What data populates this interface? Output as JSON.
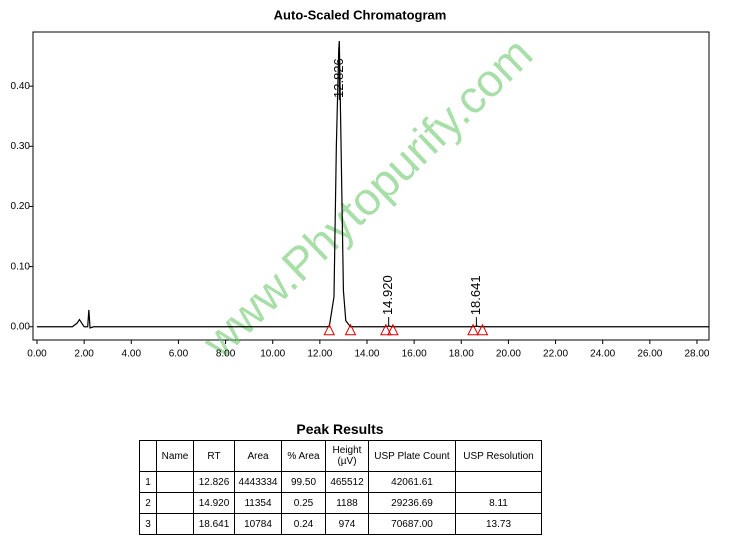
{
  "chart_data": {
    "type": "line",
    "title": "Auto-Scaled Chromatogram",
    "watermark": "www.Phytopurify.com",
    "x": [
      0,
      1.5,
      1.7,
      1.8,
      1.9,
      2.0,
      2.15,
      2.2,
      2.25,
      2.4,
      12.4,
      12.6,
      12.7,
      12.8,
      12.826,
      12.9,
      13.0,
      13.1,
      13.3,
      14.8,
      14.92,
      15.05,
      18.5,
      18.641,
      18.8,
      28.5
    ],
    "series": [
      {
        "color": "#000000",
        "values": [
          0,
          0,
          0.006,
          0.012,
          0.006,
          0,
          0,
          0.028,
          -0.002,
          0,
          0,
          0.05,
          0.3,
          0.46,
          0.475,
          0.3,
          0.06,
          0.01,
          0,
          0,
          0.0012,
          0,
          0,
          0.001,
          0,
          0
        ]
      }
    ],
    "peak_labels": [
      {
        "value": 12.826,
        "label": "12.826"
      },
      {
        "value": 14.92,
        "label": "14.920"
      },
      {
        "value": 18.641,
        "label": "18.641"
      }
    ],
    "baseline_marks": [
      12.4,
      13.3,
      14.8,
      15.1,
      18.5,
      18.9
    ],
    "baseline_mark_color": "#e00000",
    "xlim": [
      -0.17,
      28.51
    ],
    "ylim": [
      -0.022,
      0.49
    ],
    "xticks": [
      {
        "value": 0,
        "label": "0.00"
      },
      {
        "value": 2,
        "label": "2.00"
      },
      {
        "value": 4,
        "label": "4.00"
      },
      {
        "value": 6,
        "label": "6.00"
      },
      {
        "value": 8,
        "label": "8.00"
      },
      {
        "value": 10,
        "label": "10.00"
      },
      {
        "value": 12,
        "label": "12.00"
      },
      {
        "value": 14,
        "label": "14.00"
      },
      {
        "value": 16,
        "label": "16.00"
      },
      {
        "value": 18,
        "label": "18.00"
      },
      {
        "value": 20,
        "label": "20.00"
      },
      {
        "value": 22,
        "label": "22.00"
      },
      {
        "value": 24,
        "label": "24.00"
      },
      {
        "value": 26,
        "label": "26.00"
      },
      {
        "value": 28,
        "label": "28.00"
      }
    ],
    "yticks": [
      {
        "value": 0,
        "label": "0.00"
      },
      {
        "value": 0.1,
        "label": "0.10"
      },
      {
        "value": 0.2,
        "label": "0.20"
      },
      {
        "value": 0.3,
        "label": "0.30"
      },
      {
        "value": 0.4,
        "label": "0.40"
      }
    ],
    "grid": false
  },
  "table": {
    "title": "Peak Results",
    "headers": [
      null,
      "Name",
      "RT",
      "Area",
      "% Area",
      "Height (µV)",
      "USP Plate Count",
      "USP Resolution"
    ],
    "rows": [
      [
        "1",
        null,
        "12.826",
        "4443334",
        "99.50",
        "465512",
        "42061.61",
        null
      ],
      [
        "2",
        null,
        "14.920",
        "11354",
        "0.25",
        "1188",
        "29236.69",
        "8.11"
      ],
      [
        "3",
        null,
        "18.641",
        "10784",
        "0.24",
        "974",
        "70687.00",
        "13.73"
      ]
    ]
  }
}
